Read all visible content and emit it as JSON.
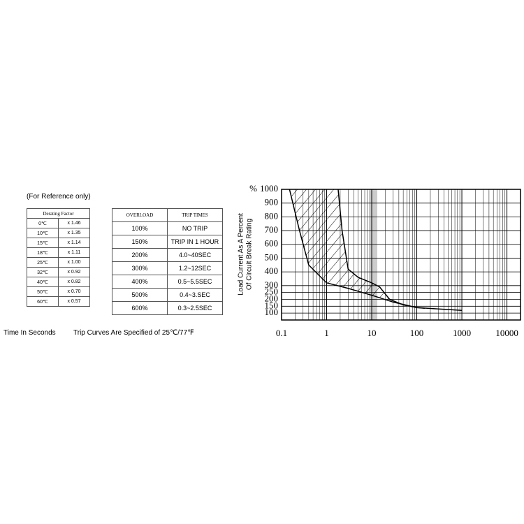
{
  "reference_note": "(For Reference only)",
  "derating_table": {
    "header": "Derating Factor",
    "rows": [
      [
        "0℃",
        "x 1.46"
      ],
      [
        "10℃",
        "x 1.35"
      ],
      [
        "15℃",
        "x 1.14"
      ],
      [
        "18℃",
        "x 1.11"
      ],
      [
        "25℃",
        "x 1.00"
      ],
      [
        "32℃",
        "x 0.92"
      ],
      [
        "40℃",
        "x 0.82"
      ],
      [
        "50℃",
        "x 0.70"
      ],
      [
        "60℃",
        "x 0.57"
      ]
    ]
  },
  "trip_table": {
    "header": [
      "OVERLOAD",
      "TRIP TIMES"
    ],
    "rows": [
      [
        "100%",
        "NO TRIP"
      ],
      [
        "150%",
        "TRIP IN 1 HOUR"
      ],
      [
        "200%",
        "4.0~40SEC"
      ],
      [
        "300%",
        "1.2~12SEC"
      ],
      [
        "400%",
        "0.5~5.5SEC"
      ],
      [
        "500%",
        "0.4~3.SEC"
      ],
      [
        "600%",
        "0.3~2.5SEC"
      ]
    ]
  },
  "footer": {
    "left": "Time In Seconds",
    "right": "Trip Curves Are Specified of 25℃/77℉"
  },
  "chart_data": {
    "type": "band",
    "y_unit": "%",
    "ylabel_lines": [
      "Load Current As A Percent",
      "Of Circuit Break Rating"
    ],
    "xlog": true,
    "xlim": [
      0.1,
      20000
    ],
    "xticks": [
      0.1,
      1,
      10,
      100,
      1000,
      10000
    ],
    "ylim": [
      50,
      1000
    ],
    "yticks": [
      1000,
      900,
      800,
      700,
      600,
      500,
      400,
      300,
      250,
      200,
      150,
      100
    ],
    "grid": true,
    "series": [
      {
        "name": "upper",
        "color": "#000000",
        "x": [
          1.8,
          2.2,
          3,
          5,
          10,
          15,
          25,
          50,
          100,
          150
        ],
        "values": [
          1000,
          700,
          420,
          360,
          320,
          290,
          200,
          160,
          140,
          135
        ]
      },
      {
        "name": "lower",
        "color": "#000000",
        "x": [
          0.15,
          0.25,
          0.4,
          0.7,
          1,
          3,
          10,
          30,
          100,
          1000
        ],
        "values": [
          1000,
          700,
          450,
          370,
          320,
          280,
          230,
          180,
          140,
          120
        ]
      }
    ]
  }
}
